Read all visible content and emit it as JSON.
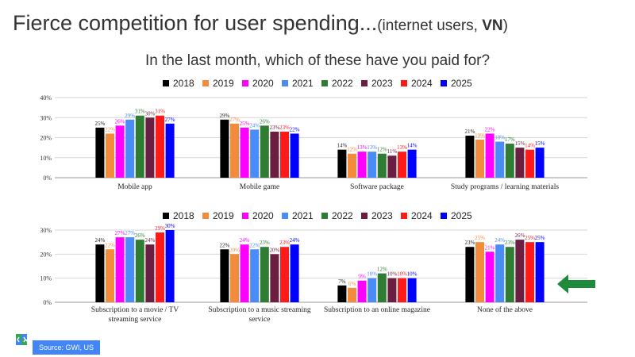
{
  "header": {
    "title_main": "Fierce competition for user spending...",
    "title_sub_open": "(internet users, ",
    "title_sub_country": "VN",
    "title_sub_close": ")",
    "question": "In the last month, which of these have you paid for?"
  },
  "source": "Source: GWI, US",
  "colors": {
    "2018": "#000000",
    "2019": "#f28c3c",
    "2020": "#ff00ff",
    "2021": "#4a8bf5",
    "2022": "#2e7d32",
    "2023": "#6b1e42",
    "2024": "#ff1a1a",
    "2025": "#0000ff",
    "arrow": "#1e8a3c",
    "label_text": "#4a6fd6"
  },
  "icons": {
    "logo": "gwi-logo-icon",
    "arrow": "arrow-left-icon"
  },
  "chart_data": [
    {
      "type": "bar",
      "legend": [
        "2018",
        "2019",
        "2020",
        "2021",
        "2022",
        "2023",
        "2024",
        "2025"
      ],
      "ylim": [
        0,
        40
      ],
      "yticks": [
        0,
        10,
        20,
        30,
        40
      ],
      "ytick_labels": [
        "0%",
        "10%",
        "20%",
        "30%",
        "40%"
      ],
      "categories": [
        "Mobile app",
        "Mobile game",
        "Software package",
        "Study programs / learning materials"
      ],
      "series": [
        {
          "name": "2018",
          "values": [
            25,
            29,
            14,
            21
          ]
        },
        {
          "name": "2019",
          "values": [
            22,
            27,
            12,
            19
          ]
        },
        {
          "name": "2020",
          "values": [
            26,
            25,
            13,
            22
          ]
        },
        {
          "name": "2021",
          "values": [
            29,
            24,
            13,
            18
          ]
        },
        {
          "name": "2022",
          "values": [
            31,
            26,
            12,
            17
          ]
        },
        {
          "name": "2023",
          "values": [
            30,
            23,
            11,
            15
          ]
        },
        {
          "name": "2024",
          "values": [
            31,
            23,
            13,
            14
          ]
        },
        {
          "name": "2025",
          "values": [
            27,
            22,
            14,
            15
          ]
        }
      ]
    },
    {
      "type": "bar",
      "legend": [
        "2018",
        "2019",
        "2020",
        "2021",
        "2022",
        "2023",
        "2024",
        "2025"
      ],
      "ylim": [
        0,
        30
      ],
      "yticks": [
        0,
        10,
        20,
        30
      ],
      "ytick_labels": [
        "0%",
        "10%",
        "20%",
        "30%"
      ],
      "categories": [
        "Subscription to a movie / TV streaming service",
        "Subscription to a music streaming service",
        "Subscription to an online magazine",
        "None of the above"
      ],
      "series": [
        {
          "name": "2018",
          "values": [
            24,
            22,
            7,
            23
          ]
        },
        {
          "name": "2019",
          "values": [
            22,
            20,
            6,
            25
          ]
        },
        {
          "name": "2020",
          "values": [
            27,
            24,
            9,
            21
          ]
        },
        {
          "name": "2021",
          "values": [
            27,
            22,
            10,
            24
          ]
        },
        {
          "name": "2022",
          "values": [
            26,
            23,
            12,
            23
          ]
        },
        {
          "name": "2023",
          "values": [
            24,
            20,
            10,
            26
          ]
        },
        {
          "name": "2024",
          "values": [
            29,
            23,
            10,
            25
          ]
        },
        {
          "name": "2025",
          "values": [
            30,
            24,
            10,
            25
          ]
        }
      ]
    }
  ]
}
